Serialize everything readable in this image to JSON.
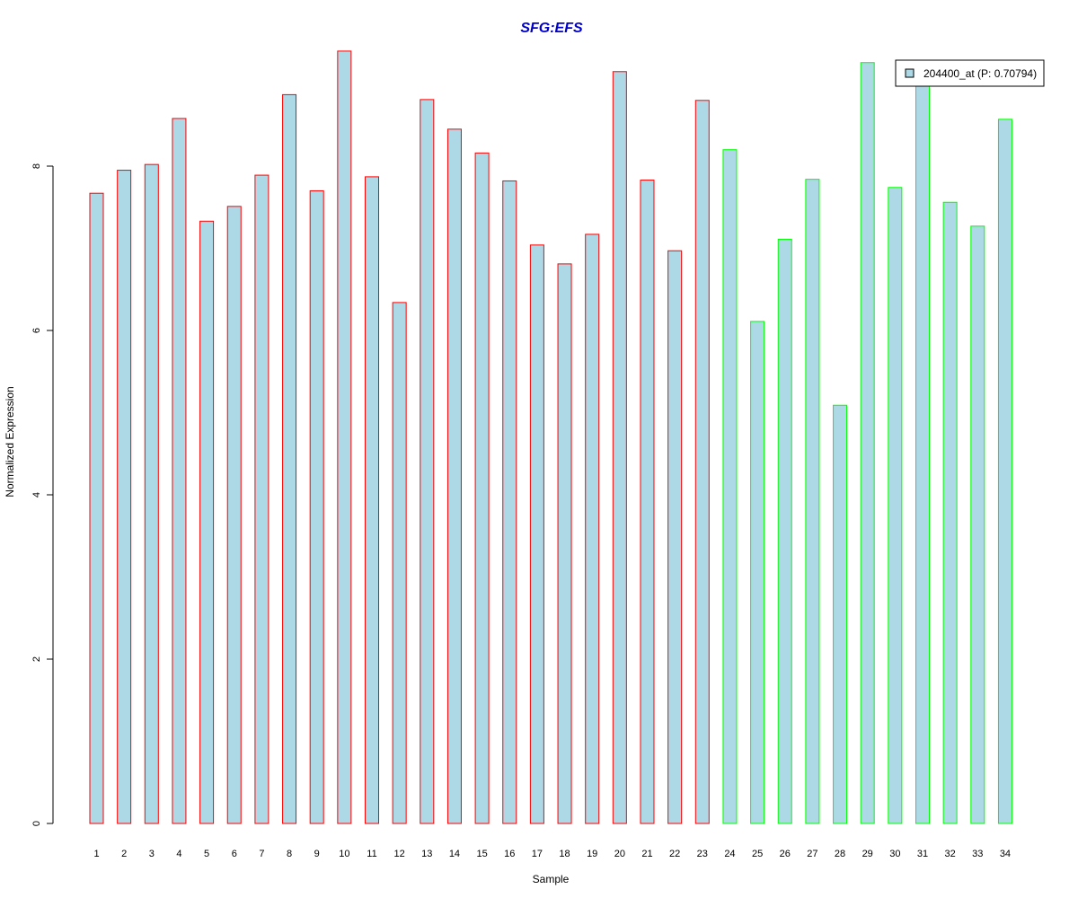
{
  "chart_data": {
    "type": "bar",
    "title": "SFG:EFS",
    "xlabel": "Sample",
    "ylabel": "Normalized Expression",
    "ylim": [
      0,
      9.4
    ],
    "yticks": [
      "0",
      "2",
      "4",
      "6",
      "8"
    ],
    "grid": false,
    "legend_position": "top-right",
    "categories": [
      "1",
      "2",
      "3",
      "4",
      "5",
      "6",
      "7",
      "8",
      "9",
      "10",
      "11",
      "12",
      "13",
      "14",
      "15",
      "16",
      "17",
      "18",
      "19",
      "20",
      "21",
      "22",
      "23",
      "24",
      "25",
      "26",
      "27",
      "28",
      "29",
      "30",
      "31",
      "32",
      "33",
      "34"
    ],
    "series": [
      {
        "name": "204400_at (P: 0.70794)",
        "values": [
          7.67,
          7.95,
          8.02,
          8.58,
          7.33,
          7.51,
          7.89,
          8.87,
          7.7,
          9.4,
          7.87,
          6.34,
          8.81,
          8.45,
          8.16,
          7.82,
          7.04,
          6.81,
          7.17,
          9.15,
          7.83,
          6.97,
          8.8,
          8.2,
          6.11,
          7.11,
          7.84,
          5.09,
          9.26,
          7.74,
          9.02,
          7.56,
          7.27,
          8.57
        ]
      }
    ],
    "group_of_bar": [
      "red",
      "red",
      "red",
      "red",
      "red",
      "red",
      "red",
      "red",
      "red",
      "red",
      "red",
      "red",
      "red",
      "red",
      "red",
      "red",
      "red",
      "red",
      "red",
      "red",
      "red",
      "red",
      "red",
      "green",
      "green",
      "green",
      "green",
      "green",
      "green",
      "green",
      "green",
      "green",
      "green",
      "green"
    ]
  },
  "colors": {
    "bar_fill": "#add8e6",
    "border_red": "#ff0000",
    "border_green": "#00ff00",
    "title": "#0000cc",
    "axis": "#000000"
  }
}
